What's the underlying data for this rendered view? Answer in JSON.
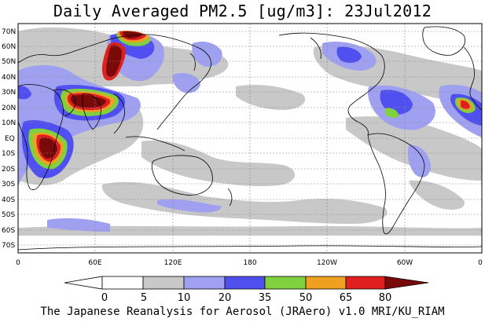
{
  "title": "Daily Averaged PM2.5 [ug/m3]: 23Jul2012",
  "footer": "The Japanese Reanalysis for Aerosol (JRAero) v1.0 MRI/KU_RIAM",
  "map": {
    "lat_labels": [
      "70N",
      "60N",
      "50N",
      "40N",
      "30N",
      "20N",
      "10N",
      "EQ",
      "10S",
      "20S",
      "30S",
      "40S",
      "50S",
      "60S",
      "70S"
    ],
    "lon_labels": [
      "0",
      "60E",
      "120E",
      "180",
      "120W",
      "60W",
      "0"
    ]
  },
  "colorbar": {
    "levels": [
      "0",
      "5",
      "10",
      "20",
      "35",
      "50",
      "65",
      "80"
    ],
    "colors": [
      "#ffffff",
      "#c8c8c8",
      "#a0a0f0",
      "#5050f0",
      "#80d040",
      "#f0a020",
      "#e02020",
      "#7a0a0a"
    ],
    "under_color": "#ffffff",
    "over_color": "#7a0a0a"
  }
}
